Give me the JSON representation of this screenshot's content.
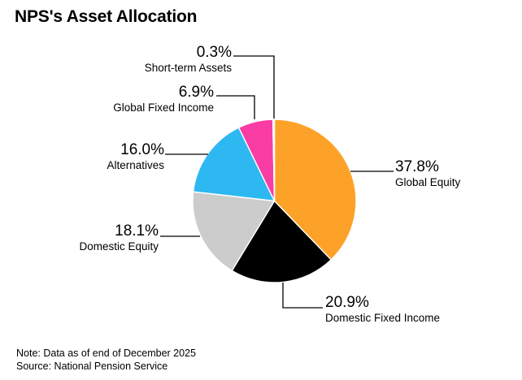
{
  "title": "NPS's Asset Allocation",
  "note": "Note: Data as of end of December 2025",
  "source": "Source: National Pension Service",
  "chart_data": {
    "type": "pie",
    "title": "NPS's Asset Allocation",
    "start_angle_deg": 0,
    "direction": "clockwise",
    "unit": "%",
    "legend": "none",
    "slices": [
      {
        "label": "Global Equity",
        "value": 37.8,
        "pct_label": "37.8%",
        "color": "#FDA229"
      },
      {
        "label": "Domestic Fixed Income",
        "value": 20.9,
        "pct_label": "20.9%",
        "color": "#000000"
      },
      {
        "label": "Domestic Equity",
        "value": 18.1,
        "pct_label": "18.1%",
        "color": "#CCCCCC"
      },
      {
        "label": "Alternatives",
        "value": 16.0,
        "pct_label": "16.0%",
        "color": "#2DB8F2"
      },
      {
        "label": "Global Fixed Income",
        "value": 6.9,
        "pct_label": "6.9%",
        "color": "#FA3CA5"
      },
      {
        "label": "Short-term Assets",
        "value": 0.3,
        "pct_label": "0.3%",
        "color": "#A6DFF8"
      }
    ]
  }
}
